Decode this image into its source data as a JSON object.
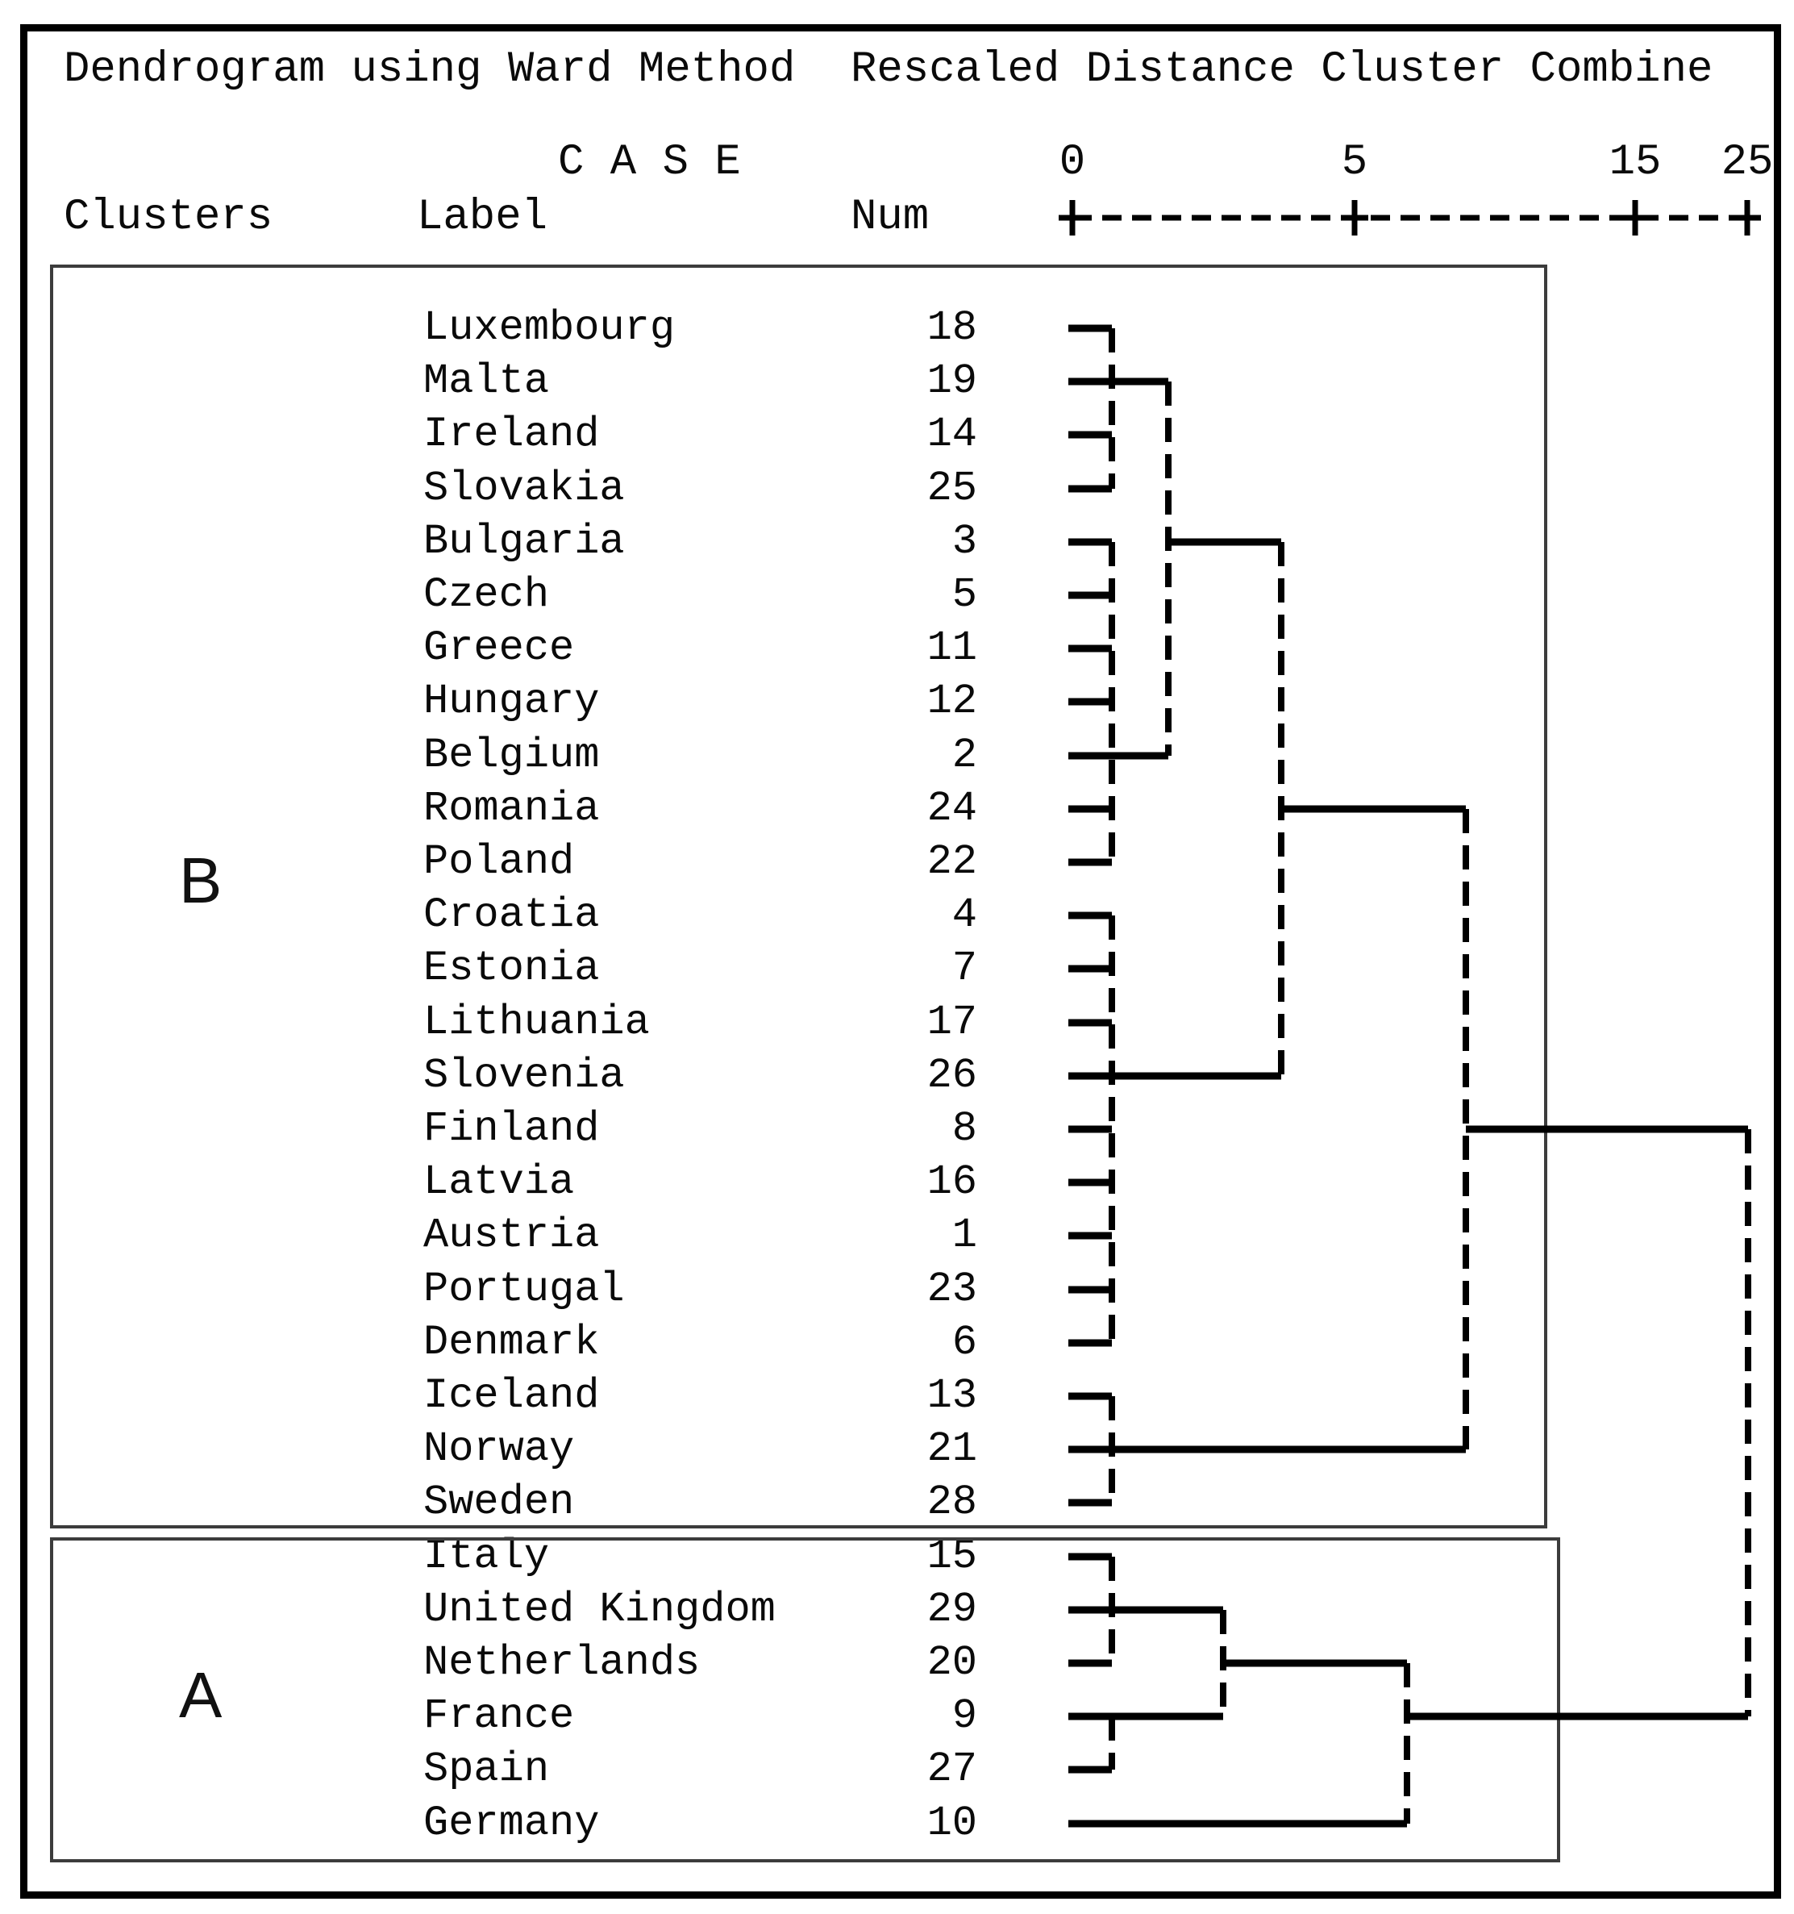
{
  "title": {
    "left": "Dendrogram using Ward Method",
    "right": "Rescaled Distance Cluster Combine"
  },
  "headers": {
    "case": "C A S E",
    "clusters": "Clusters",
    "label": "Label",
    "num": "Num"
  },
  "axis_ticks": [
    "0",
    "5",
    "15",
    "25"
  ],
  "cluster_boxes": [
    {
      "label": "B",
      "first_row": 0,
      "last_row": 22
    },
    {
      "label": "A",
      "first_row": 23,
      "last_row": 28
    }
  ],
  "rows": [
    {
      "label": "Luxembourg",
      "num": "18",
      "cluster": "B"
    },
    {
      "label": "Malta",
      "num": "19",
      "cluster": "B"
    },
    {
      "label": "Ireland",
      "num": "14",
      "cluster": "B"
    },
    {
      "label": "Slovakia",
      "num": "25",
      "cluster": "B"
    },
    {
      "label": "Bulgaria",
      "num": "3",
      "cluster": "B"
    },
    {
      "label": "Czech",
      "num": "5",
      "cluster": "B"
    },
    {
      "label": "Greece",
      "num": "11",
      "cluster": "B"
    },
    {
      "label": "Hungary",
      "num": "12",
      "cluster": "B"
    },
    {
      "label": "Belgium",
      "num": "2",
      "cluster": "B"
    },
    {
      "label": "Romania",
      "num": "24",
      "cluster": "B"
    },
    {
      "label": "Poland",
      "num": "22",
      "cluster": "B"
    },
    {
      "label": "Croatia",
      "num": "4",
      "cluster": "B"
    },
    {
      "label": "Estonia",
      "num": "7",
      "cluster": "B"
    },
    {
      "label": "Lithuania",
      "num": "17",
      "cluster": "B"
    },
    {
      "label": "Slovenia",
      "num": "26",
      "cluster": "B"
    },
    {
      "label": "Finland",
      "num": "8",
      "cluster": "B"
    },
    {
      "label": "Latvia",
      "num": "16",
      "cluster": "B"
    },
    {
      "label": "Austria",
      "num": "1",
      "cluster": "B"
    },
    {
      "label": "Portugal",
      "num": "23",
      "cluster": "B"
    },
    {
      "label": "Denmark",
      "num": "6",
      "cluster": "B"
    },
    {
      "label": "Iceland",
      "num": "13",
      "cluster": "B"
    },
    {
      "label": "Norway",
      "num": "21",
      "cluster": "B"
    },
    {
      "label": "Sweden",
      "num": "28",
      "cluster": "B"
    },
    {
      "label": "Italy",
      "num": "15",
      "cluster": "A"
    },
    {
      "label": "United Kingdom",
      "num": "29",
      "cluster": "A"
    },
    {
      "label": "Netherlands",
      "num": "20",
      "cluster": "A"
    },
    {
      "label": "France",
      "num": "9",
      "cluster": "A"
    },
    {
      "label": "Spain",
      "num": "27",
      "cluster": "A"
    },
    {
      "label": "Germany",
      "num": "10",
      "cluster": "A"
    }
  ],
  "tree": {
    "leaf_horizontals": [
      {
        "row": 0,
        "to": "L1"
      },
      {
        "row": 1,
        "to": "L2"
      },
      {
        "row": 2,
        "to": "L1"
      },
      {
        "row": 3,
        "to": "L1"
      },
      {
        "row": 4,
        "to": "L1"
      },
      {
        "row": 5,
        "to": "L1"
      },
      {
        "row": 6,
        "to": "L1"
      },
      {
        "row": 7,
        "to": "L1"
      },
      {
        "row": 8,
        "to": "L2"
      },
      {
        "row": 9,
        "to": "L1"
      },
      {
        "row": 10,
        "to": "L1"
      },
      {
        "row": 11,
        "to": "L1"
      },
      {
        "row": 12,
        "to": "L1"
      },
      {
        "row": 13,
        "to": "L1"
      },
      {
        "row": 14,
        "to": "L3"
      },
      {
        "row": 15,
        "to": "L1"
      },
      {
        "row": 16,
        "to": "L1"
      },
      {
        "row": 17,
        "to": "L1"
      },
      {
        "row": 18,
        "to": "L1"
      },
      {
        "row": 19,
        "to": "L1"
      },
      {
        "row": 20,
        "to": "L1"
      },
      {
        "row": 21,
        "to": "L4"
      },
      {
        "row": 22,
        "to": "L1"
      },
      {
        "row": 23,
        "to": "L1"
      },
      {
        "row": 24,
        "to": "LUK"
      },
      {
        "row": 25,
        "to": "L1"
      },
      {
        "row": 26,
        "to": "LUK"
      },
      {
        "row": 27,
        "to": "L1"
      },
      {
        "row": 28,
        "to": "LDE"
      }
    ],
    "exit_horizontals": [
      {
        "row": 4,
        "from": "L2",
        "to": "L3"
      },
      {
        "row": 9,
        "from": "L3",
        "to": "L4"
      },
      {
        "row": 15,
        "from": "L4",
        "to": "ROOT"
      },
      {
        "row": 25,
        "from": "LUK",
        "to": "LDE"
      },
      {
        "row": 26,
        "from": "LDE",
        "to": "ROOT"
      }
    ],
    "merge_verticals": [
      {
        "x": "L1",
        "from": 0,
        "to": 3
      },
      {
        "x": "L1",
        "from": 4,
        "to": 10
      },
      {
        "x": "L1",
        "from": 11,
        "to": 19
      },
      {
        "x": "L1",
        "from": 20,
        "to": 22
      },
      {
        "x": "L1",
        "from": 23,
        "to": 25
      },
      {
        "x": "L1",
        "from": 26,
        "to": 27
      },
      {
        "x": "L2",
        "from": 1,
        "to": 8
      },
      {
        "x": "L3",
        "from": 4,
        "to": 14
      },
      {
        "x": "L4",
        "from": 9,
        "to": 21
      },
      {
        "x": "LUK",
        "from": 24,
        "to": 26
      },
      {
        "x": "LDE",
        "from": 25,
        "to": 28
      },
      {
        "x": "ROOT",
        "from": 15,
        "to": 26
      }
    ]
  },
  "chart_data": {
    "type": "dendrogram",
    "title": "Dendrogram using Ward Method",
    "xlabel": "Rescaled Distance Cluster Combine",
    "axis_ticks": [
      0,
      5,
      15,
      25
    ],
    "axis_range": [
      0,
      25
    ],
    "leaves": [
      {
        "label": "Luxembourg",
        "num": 18
      },
      {
        "label": "Malta",
        "num": 19
      },
      {
        "label": "Ireland",
        "num": 14
      },
      {
        "label": "Slovakia",
        "num": 25
      },
      {
        "label": "Bulgaria",
        "num": 3
      },
      {
        "label": "Czech",
        "num": 5
      },
      {
        "label": "Greece",
        "num": 11
      },
      {
        "label": "Hungary",
        "num": 12
      },
      {
        "label": "Belgium",
        "num": 2
      },
      {
        "label": "Romania",
        "num": 24
      },
      {
        "label": "Poland",
        "num": 22
      },
      {
        "label": "Croatia",
        "num": 4
      },
      {
        "label": "Estonia",
        "num": 7
      },
      {
        "label": "Lithuania",
        "num": 17
      },
      {
        "label": "Slovenia",
        "num": 26
      },
      {
        "label": "Finland",
        "num": 8
      },
      {
        "label": "Latvia",
        "num": 16
      },
      {
        "label": "Austria",
        "num": 1
      },
      {
        "label": "Portugal",
        "num": 23
      },
      {
        "label": "Denmark",
        "num": 6
      },
      {
        "label": "Iceland",
        "num": 13
      },
      {
        "label": "Norway",
        "num": 21
      },
      {
        "label": "Sweden",
        "num": 28
      },
      {
        "label": "Italy",
        "num": 15
      },
      {
        "label": "United Kingdom",
        "num": 29
      },
      {
        "label": "Netherlands",
        "num": 20
      },
      {
        "label": "France",
        "num": 9
      },
      {
        "label": "Spain",
        "num": 27
      },
      {
        "label": "Germany",
        "num": 10
      }
    ],
    "clusters": {
      "B": [
        "Luxembourg",
        "Malta",
        "Ireland",
        "Slovakia",
        "Bulgaria",
        "Czech",
        "Greece",
        "Hungary",
        "Belgium",
        "Romania",
        "Poland",
        "Croatia",
        "Estonia",
        "Lithuania",
        "Slovenia",
        "Finland",
        "Latvia",
        "Austria",
        "Portugal",
        "Denmark",
        "Iceland",
        "Norway",
        "Sweden"
      ],
      "A": [
        "Italy",
        "United Kingdom",
        "Netherlands",
        "France",
        "Spain",
        "Germany"
      ]
    },
    "merges": [
      {
        "members": [
          "Luxembourg",
          "Malta",
          "Ireland",
          "Slovakia"
        ],
        "distance": 0.8
      },
      {
        "members": [
          "Bulgaria",
          "Czech",
          "Greece",
          "Hungary",
          "Belgium",
          "Romania",
          "Poland"
        ],
        "distance": 0.8
      },
      {
        "members": [
          "Croatia",
          "Estonia",
          "Lithuania",
          "Slovenia",
          "Finland",
          "Latvia",
          "Austria",
          "Portugal",
          "Denmark"
        ],
        "distance": 0.8
      },
      {
        "members": [
          "Iceland",
          "Norway",
          "Sweden"
        ],
        "distance": 0.8
      },
      {
        "members": [
          "Italy",
          "United Kingdom",
          "Netherlands"
        ],
        "distance": 0.8
      },
      {
        "members": [
          "France",
          "Spain"
        ],
        "distance": 0.8
      },
      {
        "members": [
          "{Lux,Malta,Ireland,Slovakia}",
          "{Bulgaria..Poland}"
        ],
        "distance": 1.7
      },
      {
        "members": [
          "{Italy,UK,Netherlands}",
          "{France,Spain}"
        ],
        "distance": 2.7
      },
      {
        "members": [
          "{B upper group}",
          "{Croatia..Denmark}"
        ],
        "distance": 3.7
      },
      {
        "members": [
          "{A group}",
          "Germany"
        ],
        "distance": 6.9
      },
      {
        "members": [
          "{B group}",
          "{Iceland,Norway,Sweden}"
        ],
        "distance": 8.9
      },
      {
        "members": [
          "cluster B",
          "cluster A"
        ],
        "distance": 25
      }
    ]
  }
}
